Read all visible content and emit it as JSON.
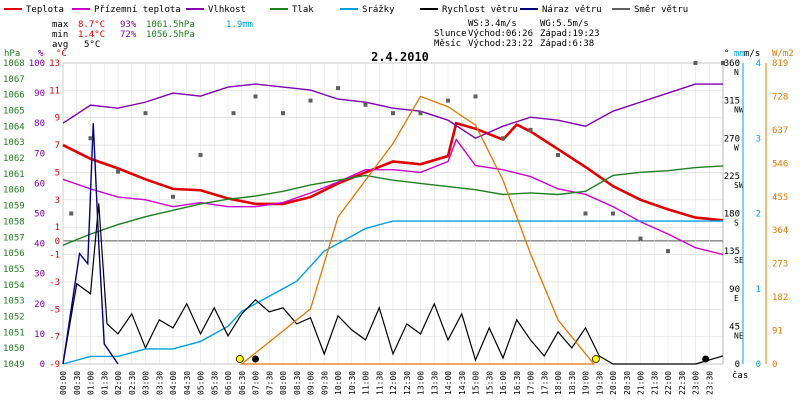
{
  "chart_data": {
    "type": "line",
    "title": "2.4.2010",
    "legend": {
      "placement": "top",
      "items": [
        {
          "name": "Teplota",
          "color": "#e00000"
        },
        {
          "name": "Přízemní teplota",
          "color": "#cc00cc"
        },
        {
          "name": "Vlhkost",
          "color": "#8000b0"
        },
        {
          "name": "Tlak",
          "color": "#208020"
        },
        {
          "name": "Srážky",
          "color": "#00a0e0"
        },
        {
          "name": "Rychlost větru",
          "color": "#000000"
        },
        {
          "name": "Náraz větru",
          "color": "#000080"
        },
        {
          "name": "Směr větru",
          "color": "#606060"
        }
      ]
    },
    "stats": {
      "max_label": "max",
      "max_temp": "8.7°C",
      "max_hum": "93%",
      "max_press": "1061.5hPa",
      "max_rain": "1.9mm",
      "min_label": "min",
      "min_temp": "1.4°C",
      "min_hum": "72%",
      "min_press": "1056.5hPa",
      "avg_label": "avg",
      "avg_temp": "5°C"
    },
    "astro": {
      "ws": "WS:3.4m/s",
      "wg": "WG:5.5m/s",
      "sun_label": "Slunce",
      "sun_rise": "Východ:06:26",
      "sun_set": "Západ:19:23",
      "moon_label": "Měsíc",
      "moon_rise": "Východ:23:22",
      "moon_set": "Západ:6:38"
    },
    "axis_units": {
      "hpa": "hPa",
      "pct": "%",
      "degc": "°C",
      "deg": "°",
      "mm": "mm",
      "ms": "m/s",
      "wm2": "W/m2",
      "time": "čas"
    },
    "axes": {
      "pressure_ticks": [
        1049,
        1050,
        1051,
        1052,
        1053,
        1054,
        1055,
        1056,
        1057,
        1058,
        1059,
        1060,
        1061,
        1062,
        1063,
        1064,
        1065,
        1066,
        1067,
        1068
      ],
      "humidity_ticks": [
        0,
        10,
        20,
        30,
        40,
        50,
        60,
        70,
        80,
        90,
        100
      ],
      "temp_ticks": [
        -9,
        -7,
        -5,
        -3,
        -1,
        0,
        1,
        3,
        5,
        7,
        9,
        11,
        13
      ],
      "dir_ticks": [
        {
          "v": 0,
          "l": "0"
        },
        {
          "v": 45,
          "l": "45"
        },
        {
          "v": 90,
          "l": "90"
        },
        {
          "v": 135,
          "l": "135"
        },
        {
          "v": 180,
          "l": "180"
        },
        {
          "v": 225,
          "l": "225"
        },
        {
          "v": 270,
          "l": "270"
        },
        {
          "v": 315,
          "l": "315"
        },
        {
          "v": 360,
          "l": "360"
        }
      ],
      "dir_names": [
        {
          "v": 45,
          "l": "NE"
        },
        {
          "v": 90,
          "l": "E"
        },
        {
          "v": 135,
          "l": "SE"
        },
        {
          "v": 180,
          "l": "S"
        },
        {
          "v": 225,
          "l": "SW"
        },
        {
          "v": 270,
          "l": "W"
        },
        {
          "v": 315,
          "l": "NW"
        },
        {
          "v": 360,
          "l": "N"
        }
      ],
      "rain_ticks": [
        0,
        1,
        2,
        3,
        4
      ],
      "wind_ticks": [
        0,
        5,
        10,
        15
      ],
      "solar_ticks": [
        0,
        91,
        182,
        273,
        364,
        455,
        546,
        637,
        728,
        819
      ],
      "time_labels": [
        "00:00",
        "00:30",
        "01:00",
        "01:30",
        "02:00",
        "02:30",
        "03:00",
        "03:30",
        "04:00",
        "04:30",
        "05:00",
        "05:30",
        "06:00",
        "06:30",
        "07:00",
        "07:30",
        "08:00",
        "08:30",
        "09:00",
        "09:30",
        "10:00",
        "10:30",
        "11:00",
        "11:30",
        "12:00",
        "12:30",
        "13:00",
        "13:30",
        "14:00",
        "14:30",
        "15:00",
        "15:30",
        "16:00",
        "16:30",
        "17:00",
        "17:30",
        "18:00",
        "18:30",
        "19:00",
        "19:30",
        "20:00",
        "20:30",
        "21:00",
        "21:30",
        "22:00",
        "22:30",
        "23:00",
        "23:30"
      ]
    },
    "series": [
      {
        "name": "Teplota",
        "axis": "temp",
        "x": [
          0,
          1,
          2,
          3,
          4,
          5,
          6,
          7,
          8,
          9,
          10,
          11,
          12,
          13,
          14,
          14.3,
          15,
          16,
          16.5,
          17,
          18,
          19,
          20,
          21,
          22,
          23,
          24
        ],
        "values": [
          7,
          6,
          5.3,
          4.5,
          3.8,
          3.7,
          3.1,
          2.7,
          2.7,
          3.2,
          4.2,
          5,
          5.8,
          5.6,
          6.2,
          8.6,
          8.2,
          7.4,
          8.5,
          8,
          6.7,
          5.4,
          4,
          3,
          2.3,
          1.7,
          1.5
        ]
      },
      {
        "name": "Přízemní teplota",
        "axis": "temp",
        "x": [
          0,
          1,
          2,
          3,
          4,
          5,
          6,
          7,
          8,
          9,
          10,
          11,
          12,
          13,
          14,
          14.3,
          15,
          16,
          17,
          18,
          19,
          20,
          21,
          22,
          23,
          24
        ],
        "values": [
          4.5,
          3.8,
          3.2,
          3,
          2.5,
          2.8,
          2.5,
          2.5,
          2.8,
          3.5,
          4.3,
          5.2,
          5.2,
          5,
          5.8,
          7.4,
          5.5,
          5.2,
          4.7,
          3.8,
          3.4,
          2.5,
          1.4,
          0.5,
          -0.5,
          -1
        ]
      },
      {
        "name": "Vlhkost",
        "axis": "humidity",
        "x": [
          0,
          1,
          2,
          3,
          4,
          5,
          6,
          7,
          8,
          9,
          10,
          11,
          12,
          13,
          14,
          15,
          16,
          17,
          18,
          19,
          20,
          21,
          22,
          23,
          24
        ],
        "values": [
          80,
          86,
          85,
          87,
          90,
          89,
          92,
          93,
          92,
          91,
          88,
          87,
          85,
          84,
          81,
          75,
          79,
          82,
          81,
          79,
          84,
          87,
          90,
          93,
          93
        ]
      },
      {
        "name": "Tlak",
        "axis": "pressure",
        "x": [
          0,
          1,
          2,
          3,
          4,
          5,
          6,
          7,
          8,
          9,
          10,
          11,
          12,
          13,
          14,
          15,
          16,
          17,
          18,
          19,
          20,
          21,
          22,
          23,
          24
        ],
        "values": [
          1056.5,
          1057.2,
          1057.8,
          1058.3,
          1058.7,
          1059.1,
          1059.4,
          1059.6,
          1059.9,
          1060.3,
          1060.6,
          1060.9,
          1060.6,
          1060.4,
          1060.2,
          1060,
          1059.7,
          1059.8,
          1059.7,
          1059.9,
          1060.9,
          1061.1,
          1061.2,
          1061.4,
          1061.5
        ]
      },
      {
        "name": "Srážky",
        "axis": "rain",
        "x": [
          0,
          1,
          2,
          3,
          4,
          5,
          5.5,
          6,
          6.5,
          7,
          7.5,
          8,
          8.5,
          9,
          9.5,
          10,
          10.5,
          11,
          12,
          16,
          20,
          24
        ],
        "values": [
          0,
          0.1,
          0.1,
          0.2,
          0.2,
          0.3,
          0.4,
          0.5,
          0.7,
          0.8,
          0.9,
          1.0,
          1.1,
          1.3,
          1.5,
          1.6,
          1.7,
          1.8,
          1.9,
          1.9,
          1.9,
          1.9
        ]
      },
      {
        "name": "Rychlost větru",
        "axis": "wind",
        "x": [
          0,
          0.5,
          1,
          1.3,
          1.6,
          2,
          2.5,
          3,
          3.5,
          4,
          4.5,
          5,
          5.5,
          6,
          6.5,
          7,
          7.5,
          8,
          8.5,
          9,
          9.5,
          10,
          10.5,
          11,
          11.5,
          12,
          12.5,
          13,
          13.5,
          14,
          14.5,
          15,
          15.5,
          16,
          16.5,
          17,
          17.5,
          18,
          18.5,
          19,
          19.5,
          20,
          21,
          22,
          23,
          24
        ],
        "values": [
          0,
          4,
          3.5,
          8,
          2,
          1.5,
          2.5,
          0.8,
          2.2,
          1.8,
          3,
          1.5,
          2.8,
          1.4,
          2.5,
          3.2,
          2.6,
          2.8,
          2,
          2.3,
          0.5,
          2.4,
          1.7,
          1.2,
          2.8,
          0.5,
          2,
          1.5,
          3,
          1.2,
          2.5,
          0.2,
          1.8,
          0.3,
          2.2,
          1.2,
          0.4,
          1.6,
          0.8,
          1.8,
          0.4,
          0,
          0,
          0,
          0,
          0.4
        ]
      },
      {
        "name": "Náraz větru",
        "axis": "wind",
        "x": [
          0,
          0.6,
          0.9,
          1.1,
          1.3,
          1.5,
          2
        ],
        "values": [
          0,
          5.5,
          5,
          12,
          6,
          1,
          0
        ]
      },
      {
        "name": "Směr větru",
        "axis": "dir",
        "type": "scatter",
        "x": [
          0.3,
          1,
          2,
          3,
          4,
          5,
          6.2,
          7,
          8,
          9,
          10,
          11,
          12,
          13,
          14,
          15,
          16,
          17,
          18,
          19,
          20,
          21,
          22,
          23,
          24
        ],
        "values": [
          180,
          270,
          230,
          300,
          200,
          250,
          300,
          320,
          300,
          315,
          330,
          310,
          300,
          300,
          315,
          320,
          270,
          280,
          250,
          180,
          180,
          150,
          135,
          360,
          360
        ]
      },
      {
        "name": "Solar",
        "axis": "solar",
        "type": "area",
        "x": [
          6.5,
          9,
          10,
          12,
          13,
          14,
          15,
          16,
          17,
          18,
          19.3
        ],
        "values": [
          0,
          150,
          400,
          600,
          728,
          700,
          650,
          500,
          300,
          120,
          0
        ]
      }
    ]
  }
}
